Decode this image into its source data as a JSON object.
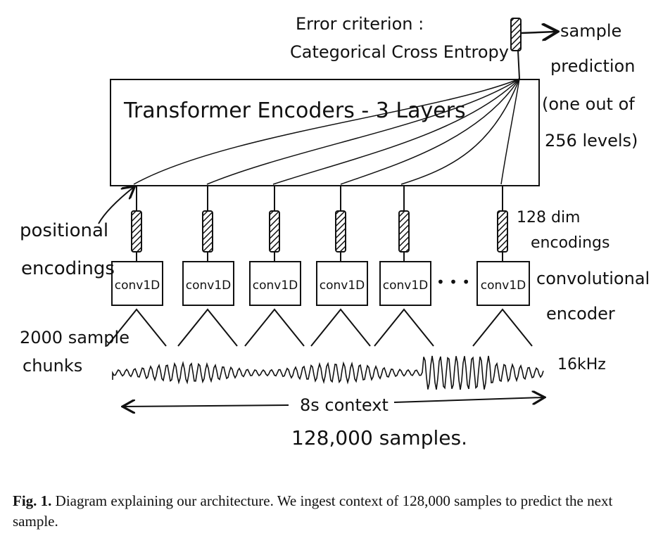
{
  "diagram": {
    "error_criterion_line1": "Error criterion :",
    "error_criterion_line2": "Categorical Cross Entropy",
    "sample_prediction_line1": "sample",
    "sample_prediction_line2": "prediction",
    "sample_prediction_line3": "(one out of",
    "sample_prediction_line4": "256 levels)",
    "transformer_label": "Transformer Encoders - 3 Layers",
    "positional_line1": "positional",
    "positional_line2": "encodings",
    "dim_line1": "128 dim",
    "dim_line2": "encodings",
    "conv_labels": [
      "conv1D",
      "conv1D",
      "conv1D",
      "conv1D",
      "conv1D",
      "conv1D"
    ],
    "ellipsis": "• • •",
    "conv_encoder_line1": "convolutional",
    "conv_encoder_line2": "encoder",
    "chunks_line1": "2000 sample",
    "chunks_line2": "chunks",
    "rate_label": "16kHz",
    "context_label": "8s context",
    "samples_label": "128,000 samples."
  },
  "caption": {
    "fig_label": "Fig. 1.",
    "text": " Diagram explaining our architecture. We ingest context of 128,000 samples to predict the next sample."
  }
}
